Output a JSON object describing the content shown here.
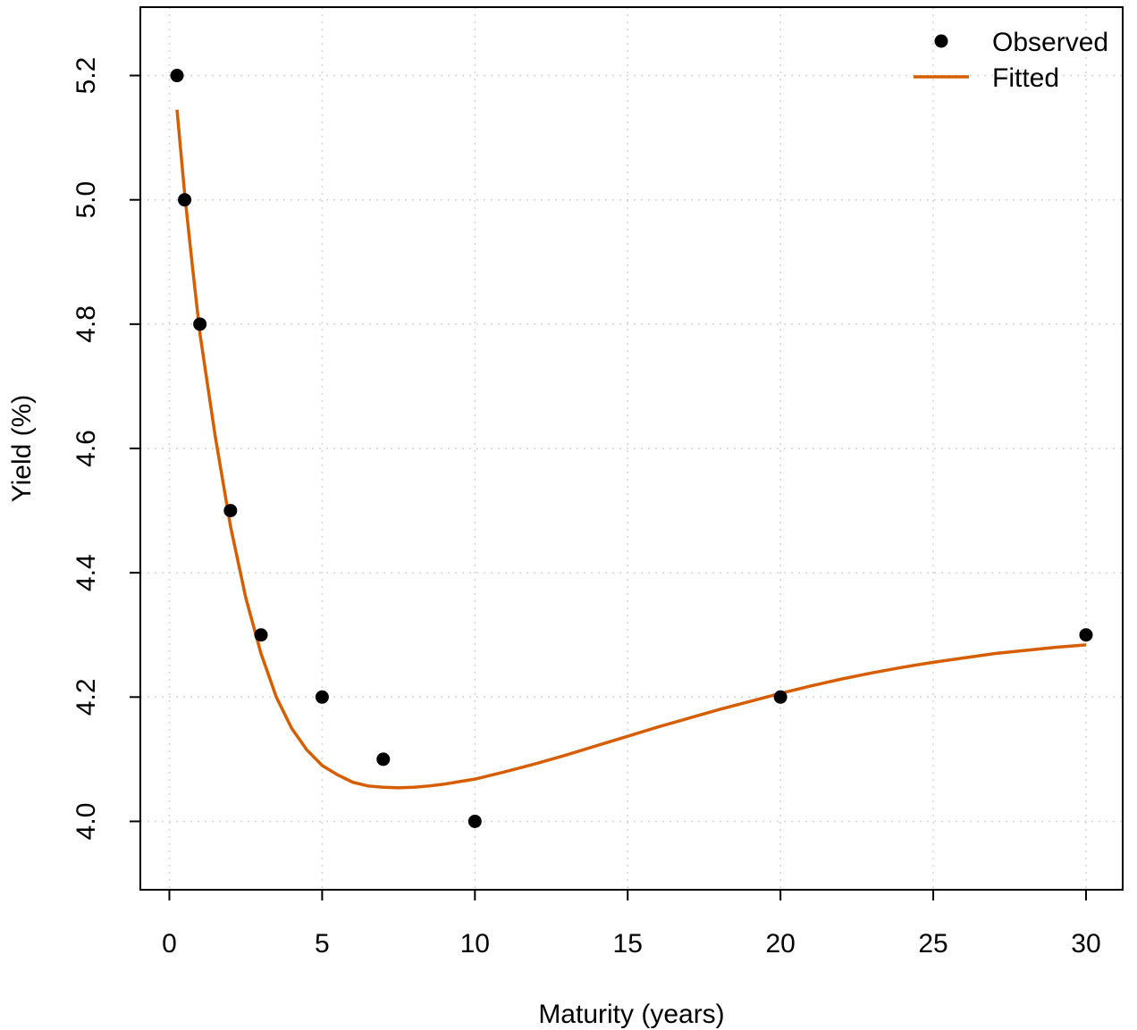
{
  "chart_data": {
    "type": "scatter",
    "title": "",
    "xlabel": "Maturity (years)",
    "ylabel": "Yield (%)",
    "xlim": [
      -0.95,
      31.2
    ],
    "ylim": [
      3.89,
      5.31
    ],
    "x_ticks": [
      0,
      5,
      10,
      15,
      20,
      25,
      30
    ],
    "x_tick_labels": [
      "0",
      "5",
      "10",
      "15",
      "20",
      "25",
      "30"
    ],
    "y_ticks": [
      4.0,
      4.2,
      4.4,
      4.6,
      4.8,
      5.0,
      5.2
    ],
    "y_tick_labels": [
      "4.0",
      "4.2",
      "4.4",
      "4.6",
      "4.8",
      "5.0",
      "5.2"
    ],
    "grid": true,
    "legend_position": "top-right",
    "series": [
      {
        "name": "Observed",
        "kind": "points",
        "color": "#000000",
        "x": [
          0.25,
          0.5,
          1,
          2,
          3,
          5,
          7,
          10,
          20,
          30
        ],
        "y": [
          5.2,
          5.0,
          4.8,
          4.5,
          4.3,
          4.2,
          4.1,
          4.0,
          4.2,
          4.3
        ]
      },
      {
        "name": "Fitted",
        "kind": "line",
        "color": "#D55E00",
        "x": [
          0.25,
          0.5,
          0.75,
          1,
          1.5,
          2,
          2.5,
          3,
          3.5,
          4,
          4.5,
          5,
          5.5,
          6,
          6.5,
          7,
          7.5,
          8,
          8.5,
          9,
          10,
          11,
          12,
          13,
          14,
          15,
          16,
          17,
          18,
          19,
          20,
          21,
          22,
          23,
          24,
          25,
          26,
          27,
          28,
          29,
          30
        ],
        "y": [
          5.145,
          5.01,
          4.895,
          4.785,
          4.62,
          4.475,
          4.36,
          4.27,
          4.2,
          4.15,
          4.115,
          4.09,
          4.075,
          4.063,
          4.057,
          4.055,
          4.054,
          4.055,
          4.057,
          4.06,
          4.068,
          4.08,
          4.093,
          4.107,
          4.122,
          4.137,
          4.152,
          4.166,
          4.18,
          4.193,
          4.206,
          4.218,
          4.229,
          4.239,
          4.248,
          4.256,
          4.263,
          4.27,
          4.275,
          4.28,
          4.284
        ]
      }
    ]
  }
}
